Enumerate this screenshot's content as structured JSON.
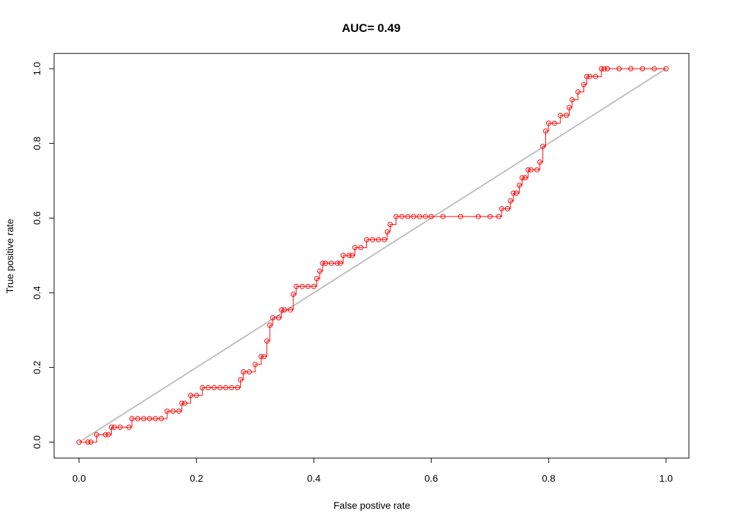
{
  "chart_data": {
    "type": "line",
    "title": "AUC= 0.49",
    "xlabel": "False postive rate",
    "ylabel": "True positive rate",
    "xlim": [
      0,
      1
    ],
    "ylim": [
      0,
      1
    ],
    "xticks": [
      "0.0",
      "0.2",
      "0.4",
      "0.6",
      "0.8",
      "1.0"
    ],
    "yticks": [
      "0.0",
      "0.2",
      "0.4",
      "0.6",
      "0.8",
      "1.0"
    ],
    "grid": false,
    "colors": {
      "curve": "#ff0000",
      "diagonal": "#bebebe",
      "axes": "#000000"
    },
    "series": [
      {
        "x": [
          0.0,
          0.015,
          0.02,
          0.03,
          0.045,
          0.05,
          0.055,
          0.06,
          0.07,
          0.085,
          0.09,
          0.1,
          0.11,
          0.12,
          0.13,
          0.14,
          0.15,
          0.16,
          0.17,
          0.175,
          0.18,
          0.19,
          0.2,
          0.21,
          0.22,
          0.23,
          0.24,
          0.25,
          0.26,
          0.27,
          0.275,
          0.28,
          0.29,
          0.3,
          0.31,
          0.315,
          0.32,
          0.325,
          0.33,
          0.34,
          0.345,
          0.35,
          0.36,
          0.365,
          0.37,
          0.38,
          0.39,
          0.4,
          0.405,
          0.41,
          0.415,
          0.42,
          0.43,
          0.44,
          0.445,
          0.45,
          0.46,
          0.465,
          0.47,
          0.48,
          0.49,
          0.5,
          0.51,
          0.52,
          0.525,
          0.53,
          0.54,
          0.55,
          0.56,
          0.57,
          0.58,
          0.59,
          0.6,
          0.62,
          0.65,
          0.68,
          0.7,
          0.715,
          0.72,
          0.73,
          0.735,
          0.74,
          0.745,
          0.75,
          0.755,
          0.76,
          0.765,
          0.77,
          0.78,
          0.785,
          0.79,
          0.795,
          0.8,
          0.81,
          0.82,
          0.83,
          0.835,
          0.84,
          0.85,
          0.86,
          0.865,
          0.87,
          0.88,
          0.89,
          0.895,
          0.9,
          0.92,
          0.94,
          0.96,
          0.98,
          1.0
        ],
        "y": [
          0.0,
          0.0,
          0.0,
          0.02,
          0.02,
          0.02,
          0.04,
          0.04,
          0.04,
          0.04,
          0.063,
          0.063,
          0.063,
          0.063,
          0.063,
          0.063,
          0.083,
          0.083,
          0.083,
          0.104,
          0.104,
          0.125,
          0.125,
          0.146,
          0.146,
          0.146,
          0.146,
          0.146,
          0.146,
          0.146,
          0.167,
          0.188,
          0.188,
          0.208,
          0.229,
          0.229,
          0.271,
          0.313,
          0.333,
          0.333,
          0.354,
          0.354,
          0.354,
          0.396,
          0.417,
          0.417,
          0.417,
          0.417,
          0.438,
          0.458,
          0.479,
          0.479,
          0.479,
          0.479,
          0.479,
          0.5,
          0.5,
          0.5,
          0.521,
          0.521,
          0.542,
          0.542,
          0.542,
          0.542,
          0.563,
          0.583,
          0.604,
          0.604,
          0.604,
          0.604,
          0.604,
          0.604,
          0.604,
          0.604,
          0.604,
          0.604,
          0.604,
          0.604,
          0.625,
          0.625,
          0.646,
          0.667,
          0.667,
          0.688,
          0.708,
          0.708,
          0.729,
          0.729,
          0.729,
          0.75,
          0.792,
          0.833,
          0.854,
          0.854,
          0.875,
          0.875,
          0.896,
          0.917,
          0.938,
          0.958,
          0.979,
          0.979,
          0.979,
          1.0,
          1.0,
          1.0,
          1.0,
          1.0,
          1.0,
          1.0,
          1.0
        ]
      },
      {
        "x": [
          0,
          1
        ],
        "y": [
          0,
          1
        ]
      }
    ]
  }
}
